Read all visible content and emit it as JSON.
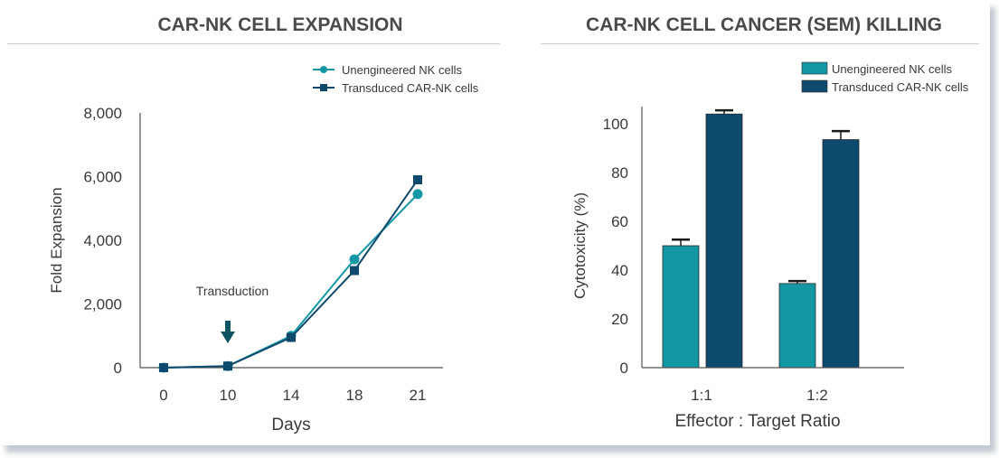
{
  "colors": {
    "unengineered": "#1497a4",
    "transduced": "#0e4a6e",
    "axis": "#555555",
    "text": "#3a3a3a",
    "arrow": "#0f5561"
  },
  "chart_data": [
    {
      "type": "line",
      "title": "CAR-NK CELL EXPANSION",
      "xlabel": "Days",
      "ylabel": "Fold Expansion",
      "categories": [
        "0",
        "10",
        "14",
        "18",
        "21"
      ],
      "ylim": [
        0,
        8000
      ],
      "yticks": [
        0,
        2000,
        4000,
        6000,
        8000
      ],
      "ytick_labels": [
        "0",
        "2,000",
        "4,000",
        "6,000",
        "8,000"
      ],
      "legend_position": "top-right",
      "grid": false,
      "annotation": {
        "text": "Transduction",
        "category": "10"
      },
      "series": [
        {
          "name": "Unengineered NK cells",
          "marker": "circle",
          "values": [
            0,
            50,
            1000,
            3400,
            5450
          ]
        },
        {
          "name": "Transduced CAR-NK cells",
          "marker": "square",
          "values": [
            0,
            50,
            950,
            3050,
            5900
          ]
        }
      ]
    },
    {
      "type": "bar",
      "title": "CAR-NK CELL CANCER (SEM) KILLING",
      "xlabel": "Effector : Target Ratio",
      "ylabel": "Cytotoxicity (%)",
      "categories": [
        "1:1",
        "1:2"
      ],
      "ylim": [
        0,
        100
      ],
      "yticks": [
        0,
        20,
        40,
        60,
        80,
        100
      ],
      "legend_position": "top-right",
      "grid": false,
      "series": [
        {
          "name": "Unengineered NK cells",
          "values": [
            50,
            34.5
          ],
          "errors": [
            2.5,
            1
          ]
        },
        {
          "name": "Transduced CAR-NK cells",
          "values": [
            104,
            93.5
          ],
          "errors": [
            1.5,
            3.5
          ]
        }
      ]
    }
  ]
}
